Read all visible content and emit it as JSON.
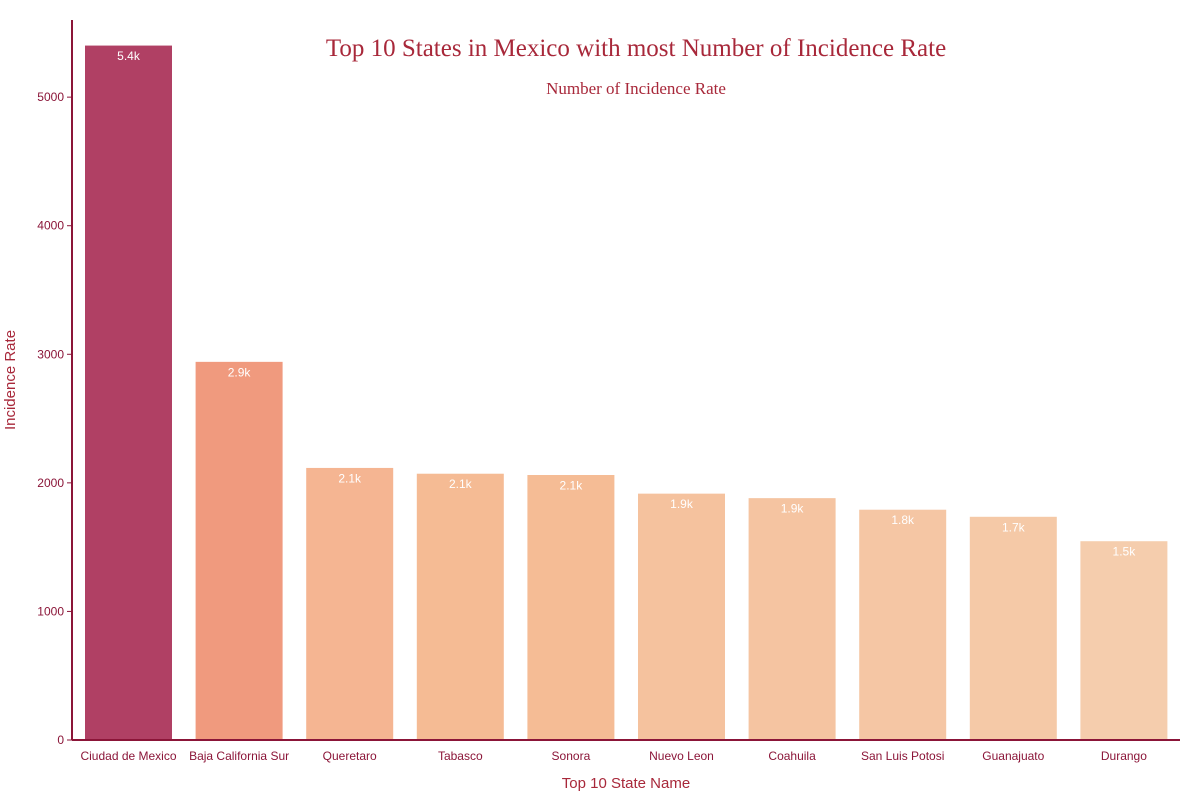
{
  "chart_data": {
    "type": "bar",
    "title": "Top 10 States in Mexico with most Number of Incidence Rate",
    "subtitle": "Number of Incidence Rate",
    "xlabel": "Top 10 State Name",
    "ylabel": "Incidence Rate",
    "ylim": [
      0,
      5600
    ],
    "yticks": [
      0,
      1000,
      2000,
      3000,
      4000,
      5000
    ],
    "categories": [
      "Ciudad de Mexico",
      "Baja California Sur",
      "Queretaro",
      "Tabasco",
      "Sonora",
      "Nuevo Leon",
      "Coahuila",
      "San Luis Potosi",
      "Guanajuato",
      "Durango"
    ],
    "values": [
      5405,
      2945,
      2120,
      2075,
      2065,
      1920,
      1885,
      1795,
      1740,
      1550
    ],
    "data_labels": [
      "5.4k",
      "2.9k",
      "2.1k",
      "2.1k",
      "2.1k",
      "1.9k",
      "1.9k",
      "1.8k",
      "1.7k",
      "1.5k"
    ],
    "bar_colors": [
      "#b04064",
      "#f09a7e",
      "#f5b592",
      "#f5bb94",
      "#f5bc95",
      "#f5c29e",
      "#f5c4a1",
      "#f5c6a4",
      "#f5c9a7",
      "#f5cdad"
    ],
    "colors": {
      "axis": "#8b1538",
      "title": "#a8283a",
      "label": "#a8283a",
      "data_label": "#ffffff"
    },
    "grid": false,
    "legend": "none"
  }
}
